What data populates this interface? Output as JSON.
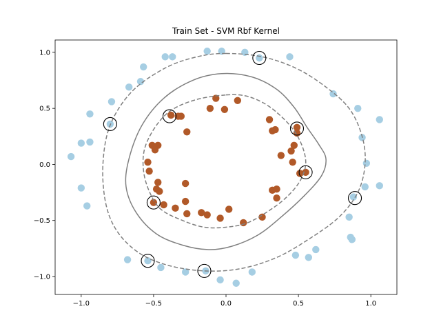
{
  "chart_data": {
    "type": "scatter",
    "title": "Train Set - SVM Rbf Kernel",
    "xlabel": "",
    "ylabel": "",
    "xlim": [
      -1.18,
      1.18
    ],
    "ylim": [
      -1.16,
      1.11
    ],
    "xticks": [
      -1.0,
      -0.5,
      0.0,
      0.5,
      1.0
    ],
    "xtick_labels": [
      "−1.0",
      "−0.5",
      "0.0",
      "0.5",
      "1.0"
    ],
    "yticks": [
      -1.0,
      -0.5,
      0.0,
      0.5,
      1.0
    ],
    "ytick_labels": [
      "−1.0",
      "−0.5",
      "0.0",
      "0.5",
      "1.0"
    ],
    "grid": false,
    "colors": {
      "outer_class": "#a6cee3",
      "inner_class": "#b15928",
      "boundary": "#808080"
    },
    "series": [
      {
        "class": 0,
        "color": "#a6cee3",
        "points": [
          [
            -0.03,
            1.01
          ],
          [
            -0.13,
            1.01
          ],
          [
            0.13,
            1.0
          ],
          [
            0.23,
            0.95
          ],
          [
            -0.42,
            0.96
          ],
          [
            -0.37,
            0.96
          ],
          [
            0.44,
            0.96
          ],
          [
            -0.57,
            0.87
          ],
          [
            -0.59,
            0.74
          ],
          [
            -0.67,
            0.69
          ],
          [
            0.74,
            0.63
          ],
          [
            0.91,
            0.5
          ],
          [
            -0.79,
            0.56
          ],
          [
            -0.94,
            0.45
          ],
          [
            1.06,
            0.4
          ],
          [
            -0.8,
            0.36
          ],
          [
            -0.94,
            0.2
          ],
          [
            -1.0,
            0.19
          ],
          [
            0.94,
            0.24
          ],
          [
            -1.07,
            0.07
          ],
          [
            0.97,
            0.01
          ],
          [
            -1.0,
            -0.21
          ],
          [
            1.06,
            -0.19
          ],
          [
            0.96,
            -0.2
          ],
          [
            -0.96,
            -0.37
          ],
          [
            0.88,
            -0.29
          ],
          [
            0.85,
            -0.47
          ],
          [
            0.86,
            -0.65
          ],
          [
            0.87,
            -0.67
          ],
          [
            -0.68,
            -0.85
          ],
          [
            0.62,
            -0.76
          ],
          [
            0.48,
            -0.81
          ],
          [
            0.57,
            -0.83
          ],
          [
            -0.54,
            -0.86
          ],
          [
            -0.45,
            -0.92
          ],
          [
            -0.28,
            -0.96
          ],
          [
            -0.14,
            -0.95
          ],
          [
            0.18,
            -0.96
          ],
          [
            -0.04,
            -1.03
          ],
          [
            0.07,
            -1.06
          ]
        ]
      },
      {
        "class": 1,
        "color": "#b15928",
        "points": [
          [
            -0.07,
            0.59
          ],
          [
            0.08,
            0.57
          ],
          [
            -0.11,
            0.5
          ],
          [
            -0.01,
            0.49
          ],
          [
            -0.38,
            0.44
          ],
          [
            -0.33,
            0.43
          ],
          [
            -0.31,
            0.43
          ],
          [
            0.3,
            0.4
          ],
          [
            0.32,
            0.3
          ],
          [
            0.34,
            0.31
          ],
          [
            0.49,
            0.33
          ],
          [
            0.49,
            0.28
          ],
          [
            -0.47,
            0.17
          ],
          [
            -0.49,
            0.13
          ],
          [
            -0.51,
            0.17
          ],
          [
            -0.27,
            0.29
          ],
          [
            0.47,
            0.17
          ],
          [
            0.45,
            0.12
          ],
          [
            0.38,
            0.08
          ],
          [
            0.46,
            0.02
          ],
          [
            0.55,
            -0.07
          ],
          [
            0.51,
            -0.08
          ],
          [
            -0.54,
            0.02
          ],
          [
            -0.53,
            -0.06
          ],
          [
            -0.47,
            -0.16
          ],
          [
            -0.48,
            -0.22
          ],
          [
            -0.46,
            -0.24
          ],
          [
            -0.28,
            -0.17
          ],
          [
            0.32,
            -0.23
          ],
          [
            0.35,
            -0.22
          ],
          [
            0.35,
            -0.3
          ],
          [
            -0.5,
            -0.34
          ],
          [
            -0.28,
            -0.33
          ],
          [
            -0.43,
            -0.36
          ],
          [
            -0.35,
            -0.39
          ],
          [
            -0.27,
            -0.44
          ],
          [
            -0.17,
            -0.43
          ],
          [
            -0.13,
            -0.45
          ],
          [
            0.02,
            -0.4
          ],
          [
            -0.04,
            -0.48
          ],
          [
            0.25,
            -0.47
          ],
          [
            0.12,
            -0.52
          ]
        ]
      }
    ],
    "support_vectors": [
      [
        0.23,
        0.95
      ],
      [
        -0.8,
        0.36
      ],
      [
        -0.39,
        0.43
      ],
      [
        0.49,
        0.32
      ],
      [
        0.55,
        -0.07
      ],
      [
        0.89,
        -0.3
      ],
      [
        -0.5,
        -0.34
      ],
      [
        -0.54,
        -0.86
      ],
      [
        -0.15,
        -0.95
      ]
    ],
    "decision_contours": [
      {
        "level": 0,
        "style": "solid",
        "points": [
          [
            -0.03,
            0.81
          ],
          [
            0.18,
            0.78
          ],
          [
            0.35,
            0.67
          ],
          [
            0.47,
            0.51
          ],
          [
            0.56,
            0.33
          ],
          [
            0.64,
            0.18
          ],
          [
            0.69,
            0.05
          ],
          [
            0.66,
            -0.1
          ],
          [
            0.54,
            -0.28
          ],
          [
            0.38,
            -0.47
          ],
          [
            0.22,
            -0.63
          ],
          [
            0.04,
            -0.73
          ],
          [
            -0.12,
            -0.76
          ],
          [
            -0.3,
            -0.72
          ],
          [
            -0.48,
            -0.62
          ],
          [
            -0.62,
            -0.43
          ],
          [
            -0.69,
            -0.2
          ],
          [
            -0.67,
            0.05
          ],
          [
            -0.58,
            0.35
          ],
          [
            -0.43,
            0.59
          ],
          [
            -0.23,
            0.75
          ]
        ]
      },
      {
        "level": 1,
        "style": "dashed",
        "points": [
          [
            0.0,
            0.62
          ],
          [
            0.14,
            0.61
          ],
          [
            0.27,
            0.54
          ],
          [
            0.38,
            0.43
          ],
          [
            0.47,
            0.3
          ],
          [
            0.53,
            0.15
          ],
          [
            0.55,
            0.0
          ],
          [
            0.51,
            -0.15
          ],
          [
            0.42,
            -0.29
          ],
          [
            0.3,
            -0.41
          ],
          [
            0.15,
            -0.52
          ],
          [
            0.0,
            -0.56
          ],
          [
            -0.15,
            -0.56
          ],
          [
            -0.3,
            -0.5
          ],
          [
            -0.45,
            -0.4
          ],
          [
            -0.53,
            -0.24
          ],
          [
            -0.57,
            -0.05
          ],
          [
            -0.56,
            0.15
          ],
          [
            -0.48,
            0.35
          ],
          [
            -0.37,
            0.49
          ],
          [
            -0.2,
            0.58
          ]
        ]
      },
      {
        "level": -1,
        "style": "dashed",
        "points": [
          [
            0.0,
            0.99
          ],
          [
            0.25,
            0.96
          ],
          [
            0.48,
            0.86
          ],
          [
            0.68,
            0.7
          ],
          [
            0.85,
            0.5
          ],
          [
            0.94,
            0.25
          ],
          [
            0.96,
            0.0
          ],
          [
            0.91,
            -0.25
          ],
          [
            0.78,
            -0.47
          ],
          [
            0.58,
            -0.66
          ],
          [
            0.35,
            -0.83
          ],
          [
            0.1,
            -0.93
          ],
          [
            -0.15,
            -0.95
          ],
          [
            -0.4,
            -0.9
          ],
          [
            -0.6,
            -0.79
          ],
          [
            -0.75,
            -0.6
          ],
          [
            -0.83,
            -0.35
          ],
          [
            -0.85,
            0.0
          ],
          [
            -0.8,
            0.35
          ],
          [
            -0.65,
            0.65
          ],
          [
            -0.42,
            0.86
          ],
          [
            -0.2,
            0.96
          ]
        ]
      }
    ]
  }
}
